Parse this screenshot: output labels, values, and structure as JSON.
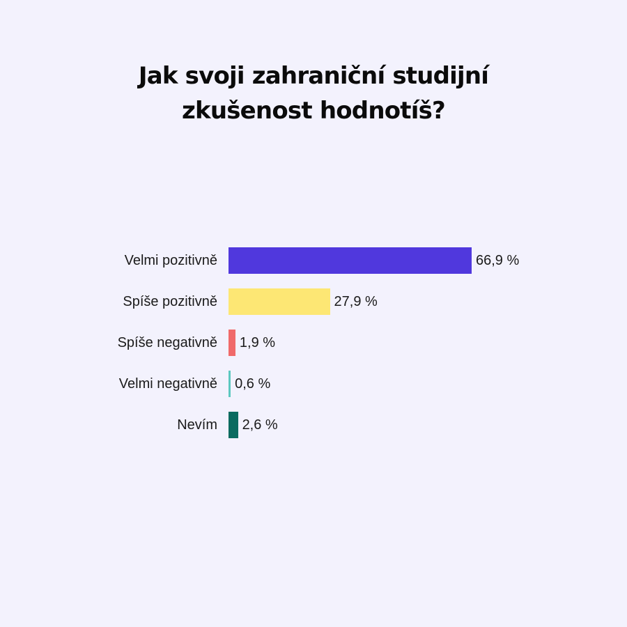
{
  "chart_data": {
    "type": "bar",
    "orientation": "horizontal",
    "title": "Jak svoji zahraniční studijní zkušenost hodnotíš?",
    "categories": [
      "Velmi pozitivně",
      "Spíše pozitivně",
      "Spíše negativně",
      "Velmi negativně",
      "Nevím"
    ],
    "values": [
      66.9,
      27.9,
      1.9,
      0.6,
      2.6
    ],
    "value_labels": [
      "66,9 %",
      "27,9 %",
      "1,9 %",
      "0,6 %",
      "2,6 %"
    ],
    "colors": [
      "#5038dd",
      "#fde774",
      "#f06a6a",
      "#5cc8c0",
      "#0b6b5f"
    ],
    "xlim": [
      0,
      66.9
    ],
    "grid": false,
    "legend": "none"
  },
  "colors": {
    "background": "#f3f2fd",
    "text": "#111111"
  }
}
